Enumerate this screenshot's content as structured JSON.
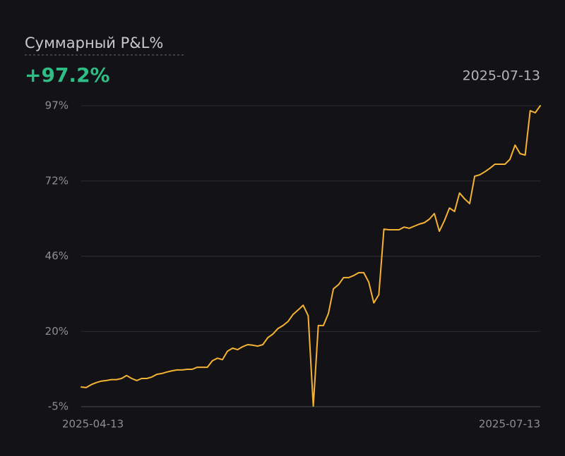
{
  "chart_data": {
    "type": "line",
    "title": "Суммарный P&L%",
    "headline": "+97.2%",
    "date": "2025-07-13",
    "color": "#f5b335",
    "headline_color": "#2ebd85",
    "grid": true,
    "ylim": [
      -5.2,
      97.2
    ],
    "yticks": [
      {
        "value": -5.2,
        "label": "-5%"
      },
      {
        "value": 20.4,
        "label": "20%"
      },
      {
        "value": 46,
        "label": "46%"
      },
      {
        "value": 71.6,
        "label": "72%"
      },
      {
        "value": 97.2,
        "label": "97%"
      }
    ],
    "xticks": [
      "2025-04-13",
      "2025-07-13"
    ],
    "x": [
      "2025-04-13",
      "2025-04-14",
      "2025-04-15",
      "2025-04-16",
      "2025-04-17",
      "2025-04-18",
      "2025-04-19",
      "2025-04-20",
      "2025-04-21",
      "2025-04-22",
      "2025-04-23",
      "2025-04-24",
      "2025-04-25",
      "2025-04-26",
      "2025-04-27",
      "2025-04-28",
      "2025-04-29",
      "2025-04-30",
      "2025-05-01",
      "2025-05-02",
      "2025-05-03",
      "2025-05-04",
      "2025-05-05",
      "2025-05-06",
      "2025-05-07",
      "2025-05-08",
      "2025-05-09",
      "2025-05-10",
      "2025-05-11",
      "2025-05-12",
      "2025-05-13",
      "2025-05-14",
      "2025-05-15",
      "2025-05-16",
      "2025-05-17",
      "2025-05-18",
      "2025-05-19",
      "2025-05-20",
      "2025-05-21",
      "2025-05-22",
      "2025-05-23",
      "2025-05-24",
      "2025-05-25",
      "2025-05-26",
      "2025-05-27",
      "2025-05-28",
      "2025-05-29",
      "2025-05-30",
      "2025-05-31",
      "2025-06-01",
      "2025-06-02",
      "2025-06-03",
      "2025-06-04",
      "2025-06-05",
      "2025-06-06",
      "2025-06-07",
      "2025-06-08",
      "2025-06-09",
      "2025-06-10",
      "2025-06-11",
      "2025-06-12",
      "2025-06-13",
      "2025-06-14",
      "2025-06-15",
      "2025-06-16",
      "2025-06-17",
      "2025-06-18",
      "2025-06-19",
      "2025-06-20",
      "2025-06-21",
      "2025-06-22",
      "2025-06-23",
      "2025-06-24",
      "2025-06-25",
      "2025-06-26",
      "2025-06-27",
      "2025-06-28",
      "2025-06-29",
      "2025-06-30",
      "2025-07-01",
      "2025-07-02",
      "2025-07-03",
      "2025-07-04",
      "2025-07-05",
      "2025-07-06",
      "2025-07-07",
      "2025-07-08",
      "2025-07-09",
      "2025-07-10",
      "2025-07-11",
      "2025-07-12",
      "2025-07-13"
    ],
    "values": [
      1.5,
      1.3,
      2.3,
      3.0,
      3.5,
      3.7,
      4.0,
      4.0,
      4.4,
      5.4,
      4.4,
      3.7,
      4.4,
      4.4,
      4.9,
      5.8,
      6.1,
      6.6,
      7.0,
      7.3,
      7.3,
      7.5,
      7.5,
      8.2,
      8.2,
      8.2,
      10.4,
      11.3,
      10.8,
      13.7,
      14.7,
      14.2,
      15.2,
      15.9,
      15.7,
      15.4,
      15.9,
      18.3,
      19.5,
      21.4,
      22.4,
      23.8,
      26.2,
      27.7,
      29.3,
      25.7,
      -5.0,
      22.4,
      22.4,
      26.5,
      34.9,
      36.3,
      38.7,
      38.7,
      39.4,
      40.4,
      40.4,
      37.2,
      30.1,
      32.9,
      55.2,
      55.0,
      55.0,
      55.0,
      55.9,
      55.5,
      56.2,
      56.9,
      57.4,
      58.6,
      60.5,
      54.5,
      58.1,
      62.4,
      61.2,
      67.5,
      65.5,
      63.9,
      73.2,
      73.7,
      74.7,
      75.9,
      77.3,
      77.3,
      77.3,
      79.0,
      83.8,
      80.9,
      80.4,
      95.5,
      94.8,
      97.2
    ]
  }
}
